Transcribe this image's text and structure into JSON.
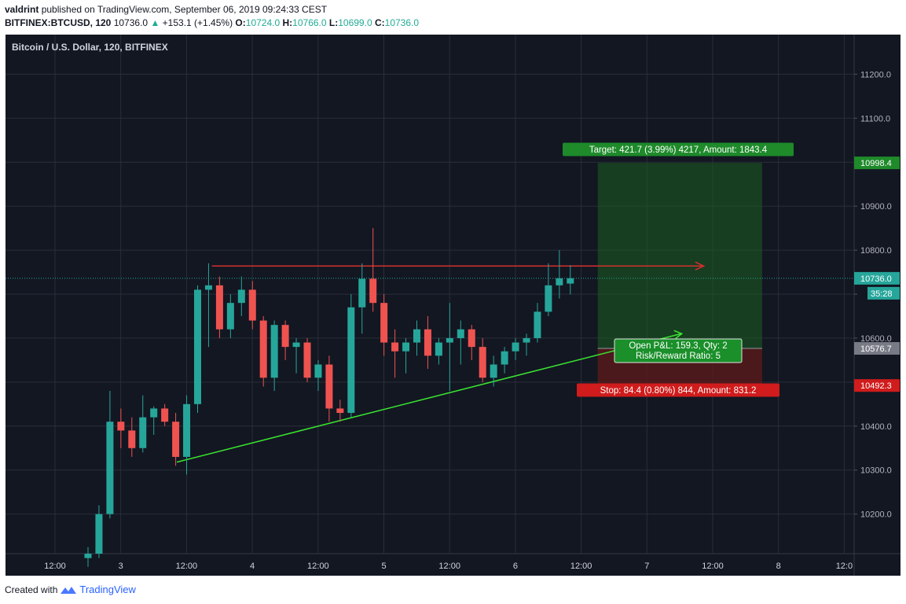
{
  "header": {
    "author": "valdrint",
    "published_text": "published on TradingView.com, September 06, 2019 09:24:33 CEST",
    "symbol": "BITFINEX:BTCUSD, 120",
    "last": "10736.0",
    "change": "+153.1 (+1.45%)",
    "open_label": "O:",
    "open": "10724.0",
    "high_label": "H:",
    "high": "10766.0",
    "low_label": "L:",
    "low": "10699.0",
    "close_label": "C:",
    "close": "10736.0"
  },
  "footer": {
    "created_with": "Created with",
    "brand": "TradingView"
  },
  "colors": {
    "background": "#131722",
    "grid": "#2a2e39",
    "up": "#26a69a",
    "down": "#ef5350",
    "target_zone": "#1b5e20",
    "stop_zone": "#5a1a1a",
    "support_line": "#39e62f",
    "resistance_line": "#d32f2f",
    "price_line": "#26a69a"
  },
  "chart_data": {
    "type": "candlestick",
    "title": "Bitcoin / U.S. Dollar, 120, BITFINEX",
    "ylim": [
      10110,
      11290
    ],
    "y_ticks": [
      10200,
      10300,
      10400,
      10500,
      10600,
      10700,
      10800,
      10900,
      11000,
      11100,
      11200
    ],
    "y_tick_labels": [
      "10200.0",
      "10300.0",
      "10400.0",
      "",
      "10600.0",
      "",
      "10800.0",
      "10900.0",
      "",
      "11100.0",
      "11200.0"
    ],
    "x_ticks": [
      "12:00",
      "3",
      "12:00",
      "4",
      "12:00",
      "5",
      "12:00",
      "6",
      "12:00",
      "7",
      "12:00",
      "8",
      "12:0"
    ],
    "interval_hours": 2,
    "candles": [
      {
        "o": 10100,
        "h": 10125,
        "l": 10080,
        "c": 10110
      },
      {
        "o": 10110,
        "h": 10220,
        "l": 10100,
        "c": 10200
      },
      {
        "o": 10200,
        "h": 10480,
        "l": 10190,
        "c": 10410
      },
      {
        "o": 10410,
        "h": 10440,
        "l": 10350,
        "c": 10390
      },
      {
        "o": 10390,
        "h": 10420,
        "l": 10330,
        "c": 10350
      },
      {
        "o": 10350,
        "h": 10470,
        "l": 10340,
        "c": 10420
      },
      {
        "o": 10420,
        "h": 10445,
        "l": 10380,
        "c": 10440
      },
      {
        "o": 10440,
        "h": 10450,
        "l": 10400,
        "c": 10410
      },
      {
        "o": 10410,
        "h": 10430,
        "l": 10310,
        "c": 10330
      },
      {
        "o": 10330,
        "h": 10470,
        "l": 10290,
        "c": 10450
      },
      {
        "o": 10450,
        "h": 10720,
        "l": 10430,
        "c": 10710
      },
      {
        "o": 10710,
        "h": 10770,
        "l": 10580,
        "c": 10720
      },
      {
        "o": 10720,
        "h": 10740,
        "l": 10600,
        "c": 10620
      },
      {
        "o": 10620,
        "h": 10700,
        "l": 10600,
        "c": 10680
      },
      {
        "o": 10680,
        "h": 10740,
        "l": 10650,
        "c": 10710
      },
      {
        "o": 10710,
        "h": 10730,
        "l": 10620,
        "c": 10640
      },
      {
        "o": 10640,
        "h": 10650,
        "l": 10490,
        "c": 10510
      },
      {
        "o": 10510,
        "h": 10640,
        "l": 10480,
        "c": 10630
      },
      {
        "o": 10630,
        "h": 10640,
        "l": 10550,
        "c": 10580
      },
      {
        "o": 10580,
        "h": 10600,
        "l": 10520,
        "c": 10590
      },
      {
        "o": 10590,
        "h": 10600,
        "l": 10500,
        "c": 10510
      },
      {
        "o": 10510,
        "h": 10550,
        "l": 10480,
        "c": 10540
      },
      {
        "o": 10540,
        "h": 10560,
        "l": 10410,
        "c": 10440
      },
      {
        "o": 10440,
        "h": 10460,
        "l": 10410,
        "c": 10430
      },
      {
        "o": 10430,
        "h": 10700,
        "l": 10420,
        "c": 10670
      },
      {
        "o": 10670,
        "h": 10770,
        "l": 10610,
        "c": 10735
      },
      {
        "o": 10735,
        "h": 10850,
        "l": 10660,
        "c": 10680
      },
      {
        "o": 10680,
        "h": 10700,
        "l": 10560,
        "c": 10590
      },
      {
        "o": 10590,
        "h": 10620,
        "l": 10510,
        "c": 10570
      },
      {
        "o": 10570,
        "h": 10600,
        "l": 10520,
        "c": 10590
      },
      {
        "o": 10590,
        "h": 10640,
        "l": 10560,
        "c": 10620
      },
      {
        "o": 10620,
        "h": 10650,
        "l": 10530,
        "c": 10560
      },
      {
        "o": 10560,
        "h": 10600,
        "l": 10540,
        "c": 10590
      },
      {
        "o": 10590,
        "h": 10680,
        "l": 10480,
        "c": 10600
      },
      {
        "o": 10600,
        "h": 10640,
        "l": 10540,
        "c": 10620
      },
      {
        "o": 10620,
        "h": 10630,
        "l": 10550,
        "c": 10580
      },
      {
        "o": 10580,
        "h": 10600,
        "l": 10500,
        "c": 10510
      },
      {
        "o": 10510,
        "h": 10560,
        "l": 10490,
        "c": 10540
      },
      {
        "o": 10540,
        "h": 10580,
        "l": 10520,
        "c": 10570
      },
      {
        "o": 10570,
        "h": 10600,
        "l": 10550,
        "c": 10590
      },
      {
        "o": 10590,
        "h": 10610,
        "l": 10560,
        "c": 10600
      },
      {
        "o": 10600,
        "h": 10680,
        "l": 10590,
        "c": 10660
      },
      {
        "o": 10660,
        "h": 10770,
        "l": 10650,
        "c": 10720
      },
      {
        "o": 10720,
        "h": 10800,
        "l": 10690,
        "c": 10736
      },
      {
        "o": 10724,
        "h": 10766,
        "l": 10699,
        "c": 10736
      }
    ],
    "last_price": {
      "value": 10736.0,
      "label": "10736.0",
      "countdown": "35:28"
    },
    "position": {
      "entry": 10576.7,
      "entry_label": "10576.7",
      "target": 10998.4,
      "target_label": "10998.4",
      "stop": 10492.3,
      "stop_label": "10492.3",
      "target_text": "Target: 421.7 (3.99%) 4217, Amount: 1843.4",
      "stop_text": "Stop: 84.4 (0.80%) 844, Amount: 831.2",
      "pnl_text": "Open P&L: 159.3, Qty: 2",
      "rr_text": "Risk/Reward Ratio: 5"
    },
    "resistance_line": {
      "value": 10764
    },
    "support_line": {
      "from": 10318,
      "to": 10610
    }
  }
}
